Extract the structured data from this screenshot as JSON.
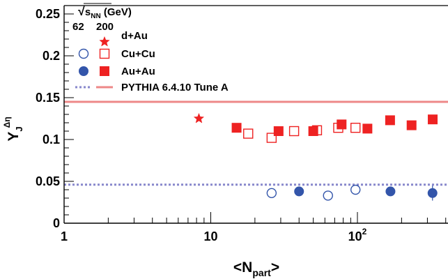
{
  "chart_data": {
    "type": "scatter",
    "x_scale": "log",
    "xlim": [
      1,
      400
    ],
    "ylim": [
      0,
      0.26
    ],
    "xlabel": {
      "main": "<N",
      "sub": "part",
      "end": ">"
    },
    "ylabel": {
      "main": "Y",
      "sub": "J",
      "sup": "Δη"
    },
    "x_ticks": [
      {
        "value": 1,
        "label": "1"
      },
      {
        "value": 10,
        "label": "10"
      },
      {
        "value": 100,
        "label": "10",
        "sup": "2"
      }
    ],
    "y_ticks": [
      {
        "value": 0,
        "label": "0"
      },
      {
        "value": 0.05,
        "label": "0.05"
      },
      {
        "value": 0.1,
        "label": "0.1"
      },
      {
        "value": 0.15,
        "label": "0.15"
      },
      {
        "value": 0.2,
        "label": "0.2"
      },
      {
        "value": 0.25,
        "label": "0.25"
      }
    ],
    "legend": {
      "placement": "top-left",
      "header": {
        "sqrt_symbol": "√",
        "s": "s",
        "sub": "NN",
        "unit": "(GeV)"
      },
      "energies": [
        "62",
        "200"
      ],
      "entries": [
        {
          "label": "d+Au"
        },
        {
          "label": "Cu+Cu"
        },
        {
          "label": "Au+Au"
        },
        {
          "label": "PYTHIA 6.4.10 Tune A"
        }
      ]
    },
    "series": [
      {
        "name": "d+Au",
        "energy": "200",
        "marker": "star",
        "filled": true,
        "color": "#ee2222",
        "points": [
          {
            "x": 8.3,
            "y": 0.125
          }
        ]
      },
      {
        "name": "Cu+Cu",
        "energy": "62",
        "marker": "circle",
        "filled": false,
        "color": "#3355aa",
        "points": [
          {
            "x": 26,
            "y": 0.036
          },
          {
            "x": 63,
            "y": 0.033
          },
          {
            "x": 97,
            "y": 0.04
          }
        ]
      },
      {
        "name": "Cu+Cu",
        "energy": "200",
        "marker": "square",
        "filled": false,
        "color": "#ee2222",
        "points": [
          {
            "x": 18,
            "y": 0.107
          },
          {
            "x": 26,
            "y": 0.102
          },
          {
            "x": 37,
            "y": 0.11
          },
          {
            "x": 53,
            "y": 0.111
          },
          {
            "x": 74,
            "y": 0.114
          },
          {
            "x": 97,
            "y": 0.114
          }
        ]
      },
      {
        "name": "Au+Au",
        "energy": "62",
        "marker": "circle",
        "filled": true,
        "color": "#3355aa",
        "points": [
          {
            "x": 40,
            "y": 0.038
          },
          {
            "x": 168,
            "y": 0.038
          },
          {
            "x": 325,
            "y": 0.036,
            "err": 0.009
          }
        ]
      },
      {
        "name": "Au+Au",
        "energy": "200",
        "marker": "square",
        "filled": true,
        "color": "#ee2222",
        "points": [
          {
            "x": 15,
            "y": 0.114
          },
          {
            "x": 29,
            "y": 0.11
          },
          {
            "x": 50,
            "y": 0.11
          },
          {
            "x": 78,
            "y": 0.118
          },
          {
            "x": 117,
            "y": 0.113
          },
          {
            "x": 167,
            "y": 0.123
          },
          {
            "x": 234,
            "y": 0.117
          },
          {
            "x": 326,
            "y": 0.124
          }
        ]
      }
    ],
    "reference_lines": [
      {
        "name": "PYTHIA 6.4.10 Tune A",
        "energy": "200",
        "y": 0.145,
        "style": "solid",
        "color": "#ee8888"
      },
      {
        "name": "PYTHIA 6.4.10 Tune A",
        "energy": "62",
        "y": 0.046,
        "style": "dotted",
        "color": "#8888cc"
      }
    ]
  }
}
